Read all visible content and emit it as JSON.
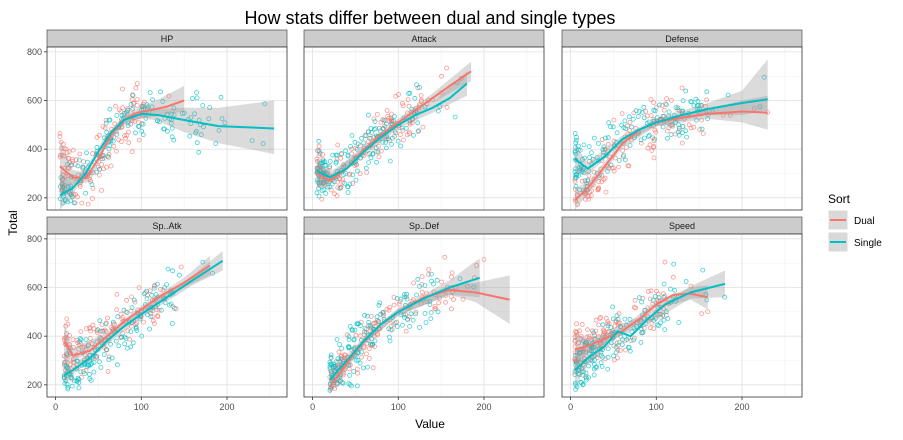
{
  "chart_data": {
    "type": "scatter",
    "title": "How stats differ between dual and single types",
    "xlabel": "Value",
    "ylabel": "Total",
    "xlim": [
      -10,
      270
    ],
    "ylim": [
      150,
      820
    ],
    "x_ticks": [
      0,
      100,
      200
    ],
    "y_ticks": [
      200,
      400,
      600,
      800
    ],
    "grid": true,
    "legend": {
      "title": "Sort",
      "position": "right",
      "entries": [
        {
          "name": "Dual",
          "color": "#F8766D"
        },
        {
          "name": "Single",
          "color": "#00BFC4"
        }
      ]
    },
    "facets": [
      {
        "label": "HP",
        "dual_trend": [
          [
            5,
            330
          ],
          [
            20,
            285
          ],
          [
            35,
            280
          ],
          [
            50,
            360
          ],
          [
            65,
            460
          ],
          [
            80,
            520
          ],
          [
            95,
            550
          ],
          [
            110,
            560
          ],
          [
            130,
            575
          ],
          [
            150,
            600
          ]
        ],
        "single_trend": [
          [
            5,
            210
          ],
          [
            20,
            240
          ],
          [
            35,
            300
          ],
          [
            50,
            390
          ],
          [
            65,
            470
          ],
          [
            80,
            520
          ],
          [
            100,
            545
          ],
          [
            120,
            540
          ],
          [
            150,
            520
          ],
          [
            190,
            495
          ],
          [
            255,
            485
          ]
        ],
        "dual_ci": [
          [
            5,
            220,
            440
          ],
          [
            20,
            255,
            315
          ],
          [
            40,
            265,
            300
          ],
          [
            60,
            420,
            455
          ],
          [
            80,
            500,
            540
          ],
          [
            100,
            525,
            575
          ],
          [
            120,
            535,
            605
          ],
          [
            150,
            555,
            660
          ]
        ],
        "single_ci": [
          [
            5,
            150,
            300
          ],
          [
            20,
            215,
            265
          ],
          [
            40,
            320,
            350
          ],
          [
            60,
            435,
            465
          ],
          [
            80,
            505,
            535
          ],
          [
            100,
            530,
            560
          ],
          [
            120,
            515,
            565
          ],
          [
            150,
            470,
            570
          ],
          [
            190,
            425,
            570
          ],
          [
            255,
            380,
            600
          ]
        ],
        "dual_x_range": [
          5,
          150
        ],
        "single_x_range": [
          5,
          255
        ],
        "dual_spread": 120,
        "single_spread": 115
      },
      {
        "label": "Attack",
        "dual_trend": [
          [
            5,
            300
          ],
          [
            20,
            270
          ],
          [
            40,
            320
          ],
          [
            60,
            400
          ],
          [
            80,
            460
          ],
          [
            100,
            510
          ],
          [
            120,
            560
          ],
          [
            140,
            610
          ],
          [
            160,
            660
          ],
          [
            185,
            720
          ]
        ],
        "single_trend": [
          [
            5,
            310
          ],
          [
            20,
            285
          ],
          [
            40,
            320
          ],
          [
            60,
            390
          ],
          [
            80,
            450
          ],
          [
            100,
            500
          ],
          [
            120,
            540
          ],
          [
            140,
            570
          ],
          [
            160,
            610
          ],
          [
            180,
            670
          ]
        ],
        "dual_ci": [
          [
            5,
            240,
            360
          ],
          [
            20,
            250,
            290
          ],
          [
            60,
            385,
            415
          ],
          [
            100,
            495,
            525
          ],
          [
            140,
            590,
            630
          ],
          [
            185,
            680,
            760
          ]
        ],
        "single_ci": [
          [
            5,
            260,
            360
          ],
          [
            20,
            265,
            305
          ],
          [
            60,
            375,
            405
          ],
          [
            100,
            485,
            515
          ],
          [
            140,
            550,
            590
          ],
          [
            180,
            620,
            720
          ]
        ],
        "dual_x_range": [
          5,
          185
        ],
        "single_x_range": [
          5,
          180
        ],
        "dual_spread": 110,
        "single_spread": 110
      },
      {
        "label": "Defense",
        "dual_trend": [
          [
            5,
            190
          ],
          [
            20,
            240
          ],
          [
            40,
            330
          ],
          [
            60,
            420
          ],
          [
            80,
            480
          ],
          [
            100,
            510
          ],
          [
            130,
            530
          ],
          [
            160,
            545
          ],
          [
            200,
            555
          ],
          [
            230,
            550
          ]
        ],
        "single_trend": [
          [
            5,
            360
          ],
          [
            20,
            320
          ],
          [
            40,
            370
          ],
          [
            60,
            440
          ],
          [
            80,
            480
          ],
          [
            100,
            510
          ],
          [
            130,
            540
          ],
          [
            160,
            565
          ],
          [
            200,
            590
          ],
          [
            230,
            605
          ]
        ],
        "dual_ci": [
          [
            5,
            150,
            240
          ],
          [
            20,
            215,
            265
          ],
          [
            60,
            405,
            435
          ],
          [
            100,
            495,
            525
          ],
          [
            160,
            525,
            565
          ],
          [
            200,
            510,
            600
          ],
          [
            230,
            480,
            620
          ]
        ],
        "single_ci": [
          [
            5,
            300,
            420
          ],
          [
            20,
            295,
            345
          ],
          [
            60,
            425,
            455
          ],
          [
            100,
            495,
            525
          ],
          [
            160,
            540,
            590
          ],
          [
            200,
            540,
            640
          ],
          [
            230,
            560,
            770
          ]
        ],
        "dual_x_range": [
          5,
          230
        ],
        "single_x_range": [
          5,
          230
        ],
        "dual_spread": 115,
        "single_spread": 115
      },
      {
        "label": "Sp..Atk",
        "dual_trend": [
          [
            10,
            380
          ],
          [
            20,
            320
          ],
          [
            40,
            340
          ],
          [
            60,
            400
          ],
          [
            80,
            460
          ],
          [
            100,
            510
          ],
          [
            120,
            560
          ],
          [
            150,
            620
          ],
          [
            180,
            690
          ]
        ],
        "single_trend": [
          [
            10,
            240
          ],
          [
            20,
            260
          ],
          [
            40,
            310
          ],
          [
            60,
            380
          ],
          [
            80,
            440
          ],
          [
            100,
            490
          ],
          [
            130,
            560
          ],
          [
            160,
            630
          ],
          [
            195,
            710
          ]
        ],
        "dual_ci": [
          [
            10,
            300,
            460
          ],
          [
            20,
            290,
            350
          ],
          [
            60,
            385,
            415
          ],
          [
            100,
            495,
            525
          ],
          [
            150,
            600,
            640
          ],
          [
            180,
            650,
            730
          ]
        ],
        "single_ci": [
          [
            10,
            200,
            280
          ],
          [
            20,
            240,
            280
          ],
          [
            60,
            365,
            395
          ],
          [
            100,
            475,
            505
          ],
          [
            160,
            610,
            650
          ],
          [
            195,
            670,
            750
          ]
        ],
        "dual_x_range": [
          10,
          180
        ],
        "single_x_range": [
          10,
          195
        ],
        "dual_spread": 115,
        "single_spread": 115
      },
      {
        "label": "Sp..Def",
        "dual_trend": [
          [
            20,
            190
          ],
          [
            40,
            290
          ],
          [
            60,
            380
          ],
          [
            80,
            450
          ],
          [
            100,
            500
          ],
          [
            130,
            560
          ],
          [
            160,
            590
          ],
          [
            190,
            580
          ],
          [
            230,
            550
          ]
        ],
        "single_trend": [
          [
            20,
            220
          ],
          [
            40,
            300
          ],
          [
            60,
            380
          ],
          [
            80,
            450
          ],
          [
            100,
            500
          ],
          [
            130,
            555
          ],
          [
            160,
            600
          ],
          [
            195,
            640
          ]
        ],
        "dual_ci": [
          [
            20,
            160,
            220
          ],
          [
            60,
            365,
            395
          ],
          [
            100,
            485,
            515
          ],
          [
            160,
            570,
            610
          ],
          [
            190,
            540,
            620
          ],
          [
            230,
            450,
            650
          ]
        ],
        "single_ci": [
          [
            20,
            190,
            250
          ],
          [
            60,
            365,
            395
          ],
          [
            100,
            485,
            515
          ],
          [
            160,
            570,
            630
          ],
          [
            195,
            560,
            720
          ]
        ],
        "dual_x_range": [
          20,
          230
        ],
        "single_x_range": [
          20,
          195
        ],
        "dual_spread": 115,
        "single_spread": 115
      },
      {
        "label": "Speed",
        "dual_trend": [
          [
            5,
            345
          ],
          [
            20,
            360
          ],
          [
            40,
            390
          ],
          [
            60,
            420
          ],
          [
            80,
            470
          ],
          [
            100,
            530
          ],
          [
            120,
            570
          ],
          [
            140,
            575
          ],
          [
            160,
            560
          ]
        ],
        "single_trend": [
          [
            5,
            260
          ],
          [
            20,
            310
          ],
          [
            40,
            360
          ],
          [
            55,
            420
          ],
          [
            70,
            400
          ],
          [
            90,
            470
          ],
          [
            110,
            530
          ],
          [
            140,
            580
          ],
          [
            180,
            615
          ]
        ],
        "dual_ci": [
          [
            5,
            280,
            410
          ],
          [
            20,
            330,
            390
          ],
          [
            60,
            405,
            435
          ],
          [
            100,
            515,
            545
          ],
          [
            140,
            550,
            600
          ],
          [
            160,
            510,
            610
          ]
        ],
        "single_ci": [
          [
            5,
            190,
            330
          ],
          [
            20,
            280,
            340
          ],
          [
            55,
            395,
            445
          ],
          [
            90,
            450,
            490
          ],
          [
            140,
            555,
            605
          ],
          [
            180,
            560,
            670
          ]
        ],
        "dual_x_range": [
          5,
          160
        ],
        "single_x_range": [
          5,
          180
        ],
        "dual_spread": 115,
        "single_spread": 115
      }
    ]
  }
}
